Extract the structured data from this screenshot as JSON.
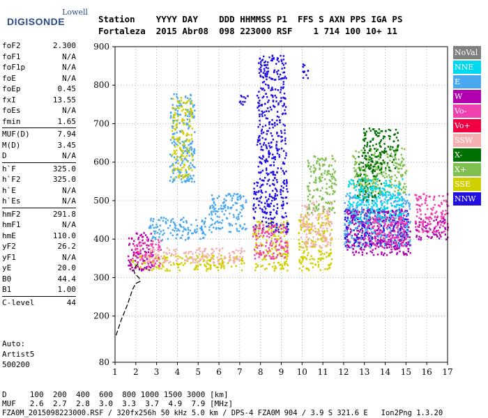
{
  "logo": {
    "brand_top": "Lowell",
    "brand_main": "DIGISONDE"
  },
  "header": {
    "line1": "Station    YYYY DAY    DDD HHMMSS P1  FFS S AXN PPS IGA PS",
    "line2": "Fortaleza  2015 Abr08  098 223000 RSF    1 714 100 10+ 11"
  },
  "params": [
    {
      "group": [
        {
          "name": "foF2",
          "value": "2.300"
        },
        {
          "name": "foF1",
          "value": "N/A"
        },
        {
          "name": "foF1p",
          "value": "N/A"
        },
        {
          "name": "foE",
          "value": "N/A"
        },
        {
          "name": "foEp",
          "value": "0.45"
        },
        {
          "name": "fxI",
          "value": "13.55"
        },
        {
          "name": "foEs",
          "value": "N/A"
        },
        {
          "name": "fmin",
          "value": "1.65"
        }
      ]
    },
    {
      "group": [
        {
          "name": "MUF(D)",
          "value": "7.94"
        },
        {
          "name": "M(D)",
          "value": "3.45"
        },
        {
          "name": "D",
          "value": "N/A"
        }
      ]
    },
    {
      "group": [
        {
          "name": "h`F",
          "value": "325.0"
        },
        {
          "name": "h`F2",
          "value": "325.0"
        },
        {
          "name": "h`E",
          "value": "N/A"
        },
        {
          "name": "h`Es",
          "value": "N/A"
        }
      ]
    },
    {
      "group": [
        {
          "name": "hmF2",
          "value": "291.8"
        },
        {
          "name": "hmF1",
          "value": "N/A"
        },
        {
          "name": "hmE",
          "value": "110.0"
        },
        {
          "name": "yF2",
          "value": "26.2"
        },
        {
          "name": "yF1",
          "value": "N/A"
        },
        {
          "name": "yE",
          "value": "20.0"
        },
        {
          "name": "B0",
          "value": "44.4"
        },
        {
          "name": "B1",
          "value": "1.00"
        }
      ]
    },
    {
      "group": [
        {
          "name": "C-level",
          "value": "44"
        }
      ]
    }
  ],
  "auto": {
    "line1": "Auto:",
    "line2": "Artist5",
    "line3": "500200"
  },
  "legend": [
    {
      "label": "NoVal",
      "color": "#808080"
    },
    {
      "label": "NNE",
      "color": "#00d8f0"
    },
    {
      "label": "E",
      "color": "#4aa8f0"
    },
    {
      "label": "W",
      "color": "#b000b0"
    },
    {
      "label": "Vo-",
      "color": "#f040b0"
    },
    {
      "label": "Vo+",
      "color": "#f00040"
    },
    {
      "label": "SSW",
      "color": "#f4b0b0"
    },
    {
      "label": "X-",
      "color": "#007000"
    },
    {
      "label": "X+",
      "color": "#80c050"
    },
    {
      "label": "SSE",
      "color": "#d0d000"
    },
    {
      "label": "NNW",
      "color": "#2010e0"
    }
  ],
  "bottom": {
    "line1": "D     100  200  400  600  800 1000 1500 3000 [km]",
    "line2": "MUF   2.6  2.7  2.8  3.0  3.3  3.7  4.9  7.9 [MHz]",
    "line3": "FZA0M_2015098223000.RSF / 320fx256h 50 kHz 5.0 km / DPS-4 FZA0M 904 / 3.9 S 321.6 E   Ion2Png 1.3.20"
  },
  "chart_data": {
    "type": "scatter",
    "title": "",
    "xlabel": "",
    "ylabel": "",
    "xlim": [
      1,
      17
    ],
    "ylim": [
      80,
      900
    ],
    "xticks": [
      1,
      2,
      3,
      4,
      5,
      6,
      7,
      8,
      9,
      10,
      11,
      12,
      13,
      14,
      15,
      16,
      17
    ],
    "yticks": [
      80,
      200,
      300,
      400,
      500,
      600,
      700,
      800,
      900
    ],
    "grid": true,
    "legend_position": "right",
    "profile": {
      "x": [
        1.05,
        1.3,
        1.6,
        1.85,
        2.0,
        2.2,
        2.15,
        2.05,
        1.95,
        1.9,
        2.0,
        2.1,
        2.15
      ],
      "y": [
        150,
        190,
        230,
        270,
        285,
        290,
        300,
        305,
        310,
        320,
        330,
        335,
        338
      ]
    },
    "clusters": [
      {
        "series": "SSE",
        "x": [
          1.7,
          7.2
        ],
        "y": [
          320,
          360
        ]
      },
      {
        "series": "W",
        "x": [
          1.6,
          2.8
        ],
        "y": [
          320,
          420
        ]
      },
      {
        "series": "Vo-",
        "x": [
          1.8,
          3.2
        ],
        "y": [
          330,
          400
        ]
      },
      {
        "series": "SSW",
        "x": [
          2.5,
          7.2
        ],
        "y": [
          340,
          380
        ]
      },
      {
        "series": "E",
        "x": [
          2.6,
          5.4
        ],
        "y": [
          400,
          460
        ]
      },
      {
        "series": "E",
        "x": [
          3.6,
          4.8
        ],
        "y": [
          550,
          780
        ]
      },
      {
        "series": "SSE",
        "x": [
          3.7,
          4.7
        ],
        "y": [
          560,
          770
        ]
      },
      {
        "series": "E",
        "x": [
          5.5,
          7.3
        ],
        "y": [
          420,
          520
        ]
      },
      {
        "series": "SSE",
        "x": [
          7.6,
          9.3
        ],
        "y": [
          320,
          450
        ]
      },
      {
        "series": "NNW",
        "x": [
          7.6,
          9.3
        ],
        "y": [
          420,
          560
        ]
      },
      {
        "series": "Vo-",
        "x": [
          7.6,
          9.3
        ],
        "y": [
          350,
          440
        ]
      },
      {
        "series": "NNW",
        "x": [
          7.8,
          9.2
        ],
        "y": [
          560,
          880
        ]
      },
      {
        "series": "SSE",
        "x": [
          9.8,
          11.4
        ],
        "y": [
          320,
          470
        ]
      },
      {
        "series": "SSW",
        "x": [
          9.9,
          11.4
        ],
        "y": [
          380,
          500
        ]
      },
      {
        "series": "X+",
        "x": [
          10.2,
          11.6
        ],
        "y": [
          470,
          620
        ]
      },
      {
        "series": "NNW",
        "x": [
          12.0,
          15.1
        ],
        "y": [
          380,
          480
        ]
      },
      {
        "series": "E",
        "x": [
          12.0,
          15.2
        ],
        "y": [
          380,
          520
        ]
      },
      {
        "series": "W",
        "x": [
          12.1,
          15.2
        ],
        "y": [
          360,
          480
        ]
      },
      {
        "series": "X-",
        "x": [
          12.6,
          13.8
        ],
        "y": [
          500,
          620
        ]
      },
      {
        "series": "X+",
        "x": [
          12.4,
          15.0
        ],
        "y": [
          520,
          640
        ]
      },
      {
        "series": "NNE",
        "x": [
          12.2,
          14.8
        ],
        "y": [
          440,
          560
        ]
      },
      {
        "series": "Vo-",
        "x": [
          13.0,
          15.0
        ],
        "y": [
          380,
          460
        ]
      },
      {
        "series": "X-",
        "x": [
          12.9,
          14.6
        ],
        "y": [
          580,
          690
        ]
      },
      {
        "series": "W",
        "x": [
          15.4,
          17.0
        ],
        "y": [
          400,
          460
        ]
      },
      {
        "series": "Vo-",
        "x": [
          15.4,
          17.0
        ],
        "y": [
          420,
          520
        ]
      },
      {
        "series": "NNW",
        "x": [
          6.9,
          7.4
        ],
        "y": [
          750,
          780
        ]
      },
      {
        "series": "NNW",
        "x": [
          10.0,
          10.3
        ],
        "y": [
          820,
          860
        ]
      }
    ]
  }
}
